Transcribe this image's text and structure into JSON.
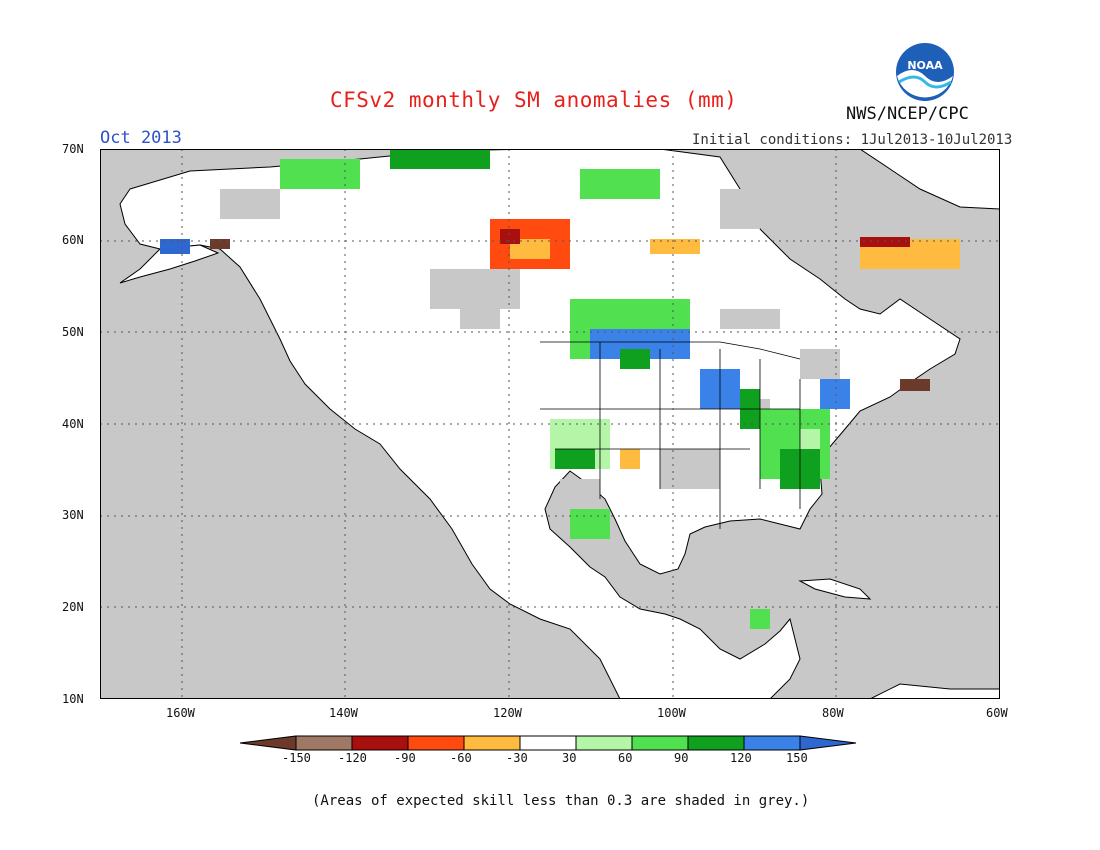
{
  "header": {
    "title": "CFSv2 monthly SM anomalies (mm)",
    "month": "Oct 2013",
    "initial_conditions": "Initial conditions: 1Jul2013-10Jul2013",
    "agency": "NWS/NCEP/CPC",
    "logo_text": "NOAA"
  },
  "map": {
    "lat_labels": [
      "70N",
      "60N",
      "50N",
      "40N",
      "30N",
      "20N",
      "10N"
    ],
    "lon_labels": [
      "160W",
      "140W",
      "120W",
      "100W",
      "80W",
      "60W"
    ],
    "masked_color": "#c8c8c8",
    "land_color": "#ffffff",
    "grid": true
  },
  "colorbar": {
    "labels": [
      "-150",
      "-120",
      "-90",
      "-60",
      "-30",
      "30",
      "60",
      "90",
      "120",
      "150"
    ],
    "colors": [
      "#6b3a2a",
      "#a07866",
      "#a81010",
      "#ff4a10",
      "#ffbb40",
      "#ffffff",
      "#b4f5a8",
      "#50e050",
      "#10a020",
      "#3a82e8",
      "#2f67d0"
    ]
  },
  "footnote": "(Areas of expected skill less than 0.3 are shaded in grey.)"
}
